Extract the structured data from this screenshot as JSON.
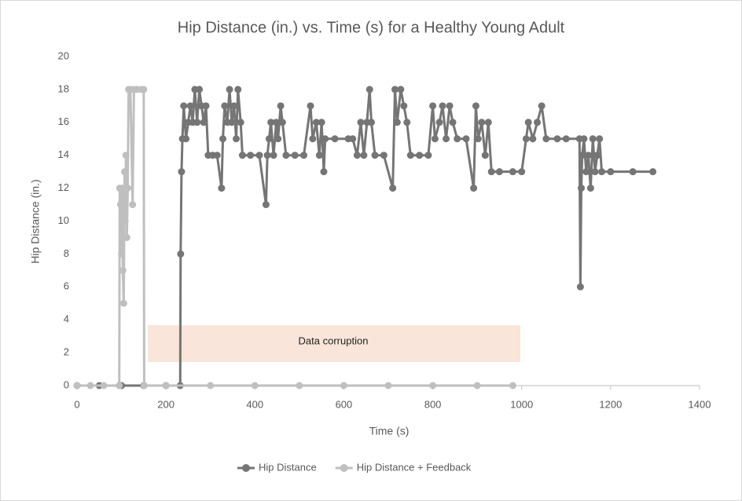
{
  "chart_data": {
    "type": "scatter",
    "title": "Hip Distance (in.) vs. Time (s) for a Healthy Young Adult",
    "x_label": "Time (s)",
    "y_label": "Hip Distance (in.)",
    "annotations": [
      "Data corruption"
    ],
    "xlim": [
      0,
      1400
    ],
    "xticks": [
      0,
      200,
      400,
      600,
      800,
      1000,
      1200,
      1400
    ],
    "ylim": [
      0,
      20
    ],
    "yticks": [
      0,
      2,
      4,
      6,
      8,
      10,
      12,
      14,
      16,
      18,
      20
    ],
    "grid": false,
    "legend": "bottom",
    "series": [
      {
        "name": "Hip Distance",
        "color": "#757575",
        "x": [
          0,
          50,
          100,
          150,
          200,
          232,
          233,
          235,
          237,
          240,
          245,
          250,
          255,
          260,
          265,
          270,
          275,
          280,
          285,
          290,
          295,
          305,
          315,
          325,
          328,
          332,
          338,
          343,
          348,
          353,
          358,
          362,
          368,
          372,
          390,
          410,
          425,
          428,
          432,
          436,
          442,
          448,
          452,
          458,
          462,
          470,
          490,
          510,
          525,
          530,
          538,
          545,
          550,
          555,
          558,
          580,
          610,
          620,
          630,
          638,
          645,
          652,
          658,
          662,
          670,
          690,
          710,
          715,
          720,
          728,
          735,
          742,
          750,
          770,
          790,
          800,
          805,
          815,
          822,
          830,
          838,
          845,
          855,
          875,
          892,
          897,
          902,
          910,
          918,
          925,
          932,
          950,
          980,
          1000,
          1010,
          1015,
          1025,
          1035,
          1045,
          1055,
          1080,
          1100,
          1130,
          1132,
          1134,
          1136,
          1140,
          1145,
          1150,
          1155,
          1160,
          1165,
          1170,
          1175,
          1180,
          1200,
          1250,
          1295
        ],
        "values": [
          0,
          0,
          0,
          0,
          0,
          0,
          8,
          13,
          15,
          17,
          15,
          16,
          17,
          16,
          18,
          16,
          18,
          17,
          16,
          17,
          14,
          14,
          14,
          12,
          15,
          17,
          16,
          18,
          16,
          17,
          15,
          18,
          16,
          14,
          14,
          14,
          11,
          14,
          15,
          16,
          14,
          16,
          15,
          17,
          16,
          14,
          14,
          14,
          17,
          15,
          16,
          14,
          16,
          13,
          15,
          15,
          15,
          15,
          14,
          16,
          14,
          16,
          18,
          16,
          14,
          14,
          12,
          18,
          16,
          18,
          17,
          16,
          14,
          14,
          14,
          17,
          15,
          16,
          17,
          15,
          17,
          16,
          15,
          15,
          12,
          17,
          15,
          16,
          14,
          16,
          13,
          13,
          13,
          13,
          15,
          16,
          15,
          16,
          17,
          15,
          15,
          15,
          15,
          6,
          12,
          14,
          15,
          13,
          14,
          12,
          15,
          13,
          14,
          15,
          13,
          13,
          13,
          13
        ]
      },
      {
        "name": "Hip Distance + Feedback",
        "color": "#bfbfbf",
        "x": [
          0,
          30,
          60,
          95,
          96,
          98,
          100,
          102,
          103,
          105,
          107,
          108,
          110,
          112,
          114,
          116,
          120,
          125,
          128,
          135,
          145,
          150,
          151,
          200,
          300,
          400,
          500,
          600,
          700,
          800,
          900,
          980
        ],
        "values": [
          0,
          0,
          0,
          0,
          12,
          11,
          8,
          12,
          7,
          5,
          13,
          10,
          14,
          9,
          12,
          18,
          18,
          11,
          18,
          18,
          18,
          18,
          0,
          0,
          0,
          0,
          0,
          0,
          0,
          0,
          0,
          0
        ]
      }
    ]
  }
}
